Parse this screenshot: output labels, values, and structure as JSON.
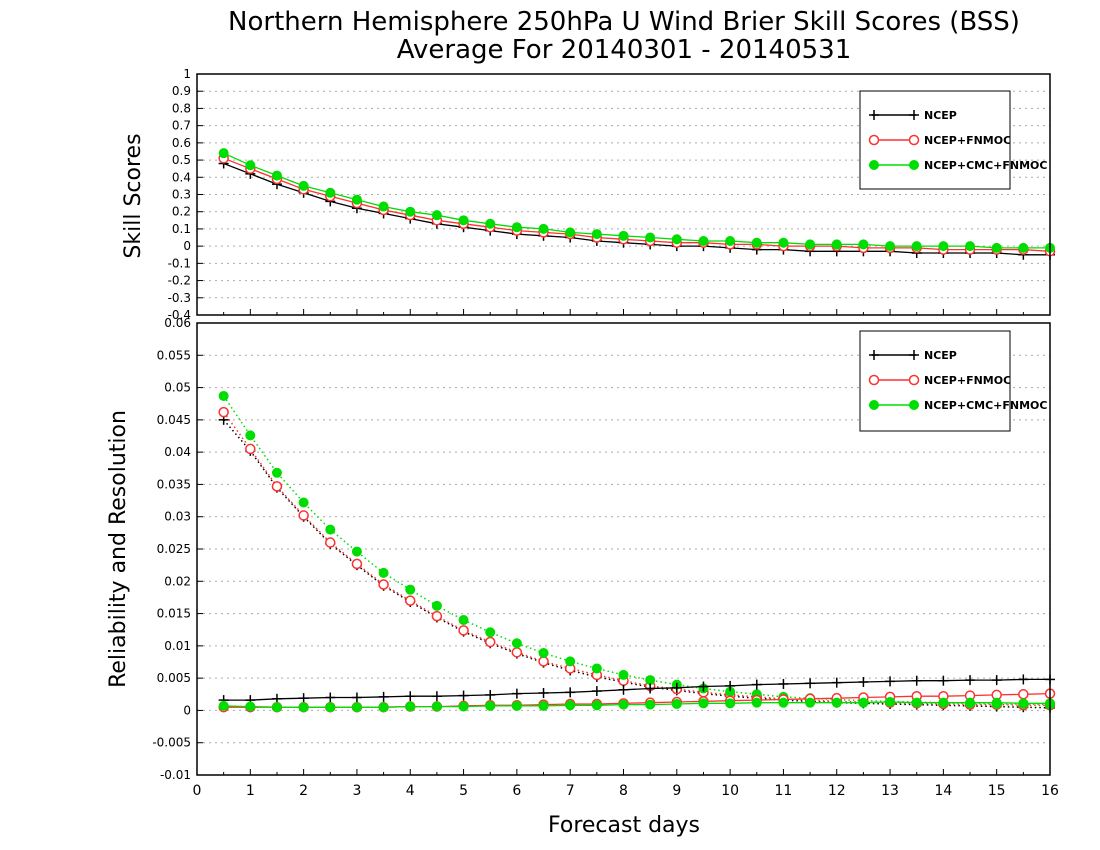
{
  "title_line1": "Northern Hemisphere 250hPa U Wind Brier Skill Scores (BSS)",
  "title_line2": "Average For 20140301 - 20140531",
  "xlabel": "Forecast days",
  "colors": {
    "ncep": "#000000",
    "fnmoc": "#ff3030",
    "cmc": "#00dd00"
  },
  "chart_data": [
    {
      "type": "line",
      "ylabel": "Skill Scores",
      "ylim": [
        -0.4,
        1
      ],
      "yticks": [
        "-0.4",
        "-0.3",
        "-0.2",
        "-0.1",
        "0",
        "0.1",
        "0.2",
        "0.3",
        "0.4",
        "0.5",
        "0.6",
        "0.7",
        "0.8",
        "0.9",
        "1"
      ],
      "xlim": [
        0,
        16
      ],
      "xticks": [
        "0",
        "1",
        "2",
        "3",
        "4",
        "5",
        "6",
        "7",
        "8",
        "9",
        "10",
        "11",
        "12",
        "13",
        "14",
        "15",
        "16"
      ],
      "legend_position": "top-right",
      "grid": true,
      "x": [
        0.5,
        1,
        1.5,
        2,
        2.5,
        3,
        3.5,
        4,
        4.5,
        5,
        5.5,
        6,
        6.5,
        7,
        7.5,
        8,
        8.5,
        9,
        9.5,
        10,
        10.5,
        11,
        11.5,
        12,
        12.5,
        13,
        13.5,
        14,
        14.5,
        15,
        15.5,
        16
      ],
      "series": [
        {
          "name": "NCEP",
          "color": "#000000",
          "marker": "plus",
          "dotted": false,
          "values": [
            0.48,
            0.42,
            0.36,
            0.31,
            0.26,
            0.22,
            0.19,
            0.16,
            0.13,
            0.11,
            0.09,
            0.07,
            0.06,
            0.05,
            0.03,
            0.02,
            0.01,
            0.0,
            0.0,
            -0.01,
            -0.02,
            -0.02,
            -0.03,
            -0.03,
            -0.03,
            -0.03,
            -0.04,
            -0.04,
            -0.04,
            -0.04,
            -0.05,
            -0.05
          ]
        },
        {
          "name": "NCEP+FNMOC",
          "color": "#ff3030",
          "marker": "circle-open",
          "dotted": false,
          "values": [
            0.51,
            0.45,
            0.39,
            0.33,
            0.29,
            0.25,
            0.21,
            0.18,
            0.15,
            0.13,
            0.11,
            0.09,
            0.08,
            0.07,
            0.05,
            0.04,
            0.03,
            0.02,
            0.02,
            0.01,
            0.01,
            0.0,
            0.0,
            0.0,
            -0.01,
            -0.01,
            -0.01,
            -0.02,
            -0.02,
            -0.02,
            -0.02,
            -0.03
          ]
        },
        {
          "name": "NCEP+CMC+FNMOC",
          "color": "#00dd00",
          "marker": "circle-filled",
          "dotted": false,
          "values": [
            0.54,
            0.47,
            0.41,
            0.35,
            0.31,
            0.27,
            0.23,
            0.2,
            0.18,
            0.15,
            0.13,
            0.11,
            0.1,
            0.08,
            0.07,
            0.06,
            0.05,
            0.04,
            0.03,
            0.03,
            0.02,
            0.02,
            0.01,
            0.01,
            0.01,
            0.0,
            0.0,
            0.0,
            0.0,
            -0.01,
            -0.01,
            -0.01
          ]
        }
      ]
    },
    {
      "type": "line",
      "ylabel": "Reliability and Resolution",
      "ylim": [
        -0.01,
        0.06
      ],
      "yticks": [
        "-0.01",
        "-0.005",
        "0",
        "0.005",
        "0.01",
        "0.015",
        "0.02",
        "0.025",
        "0.03",
        "0.035",
        "0.04",
        "0.045",
        "0.05",
        "0.055",
        "0.06"
      ],
      "xlim": [
        0,
        16
      ],
      "legend_position": "top-right",
      "grid": true,
      "x": [
        0.5,
        1,
        1.5,
        2,
        2.5,
        3,
        3.5,
        4,
        4.5,
        5,
        5.5,
        6,
        6.5,
        7,
        7.5,
        8,
        8.5,
        9,
        9.5,
        10,
        10.5,
        11,
        11.5,
        12,
        12.5,
        13,
        13.5,
        14,
        14.5,
        15,
        15.5,
        16
      ],
      "series": [
        {
          "name": "NCEP",
          "color": "#000000",
          "marker": "plus",
          "dotted": true,
          "values": [
            0.045,
            0.0402,
            0.0345,
            0.03,
            0.0258,
            0.0225,
            0.0193,
            0.0168,
            0.0144,
            0.0122,
            0.0104,
            0.0088,
            0.0074,
            0.0062,
            0.0052,
            0.0044,
            0.0036,
            0.0031,
            0.0026,
            0.0022,
            0.0019,
            0.0016,
            0.0014,
            0.0012,
            0.0011,
            0.001,
            0.0009,
            0.0008,
            0.0007,
            0.0006,
            0.0005,
            0.0004
          ]
        },
        {
          "name": "NCEP+FNMOC",
          "color": "#ff3030",
          "marker": "circle-open",
          "dotted": true,
          "values": [
            0.0462,
            0.0405,
            0.0347,
            0.0302,
            0.026,
            0.0227,
            0.0195,
            0.017,
            0.0146,
            0.0124,
            0.0106,
            0.009,
            0.0076,
            0.0065,
            0.0055,
            0.0046,
            0.0038,
            0.0033,
            0.0028,
            0.0024,
            0.0021,
            0.0018,
            0.0016,
            0.0014,
            0.0013,
            0.0012,
            0.0011,
            0.001,
            0.0009,
            0.0009,
            0.0008,
            0.0008
          ]
        },
        {
          "name": "NCEP+CMC+FNMOC",
          "color": "#00dd00",
          "marker": "circle-filled",
          "dotted": true,
          "values": [
            0.0487,
            0.0426,
            0.0368,
            0.0322,
            0.028,
            0.0246,
            0.0213,
            0.0187,
            0.0162,
            0.014,
            0.0121,
            0.0104,
            0.0089,
            0.0076,
            0.0065,
            0.0055,
            0.0047,
            0.004,
            0.0034,
            0.0029,
            0.0025,
            0.0021,
            0.0019,
            0.0017,
            0.0015,
            0.0014,
            0.0013,
            0.0012,
            0.0011,
            0.001,
            0.001,
            0.0009
          ]
        },
        {
          "name": "NCEP",
          "color": "#000000",
          "marker": "plus",
          "dotted": false,
          "values": [
            0.0016,
            0.0016,
            0.0018,
            0.0019,
            0.002,
            0.002,
            0.0021,
            0.0022,
            0.0022,
            0.0023,
            0.0024,
            0.0026,
            0.0027,
            0.0028,
            0.003,
            0.0032,
            0.0034,
            0.0035,
            0.0037,
            0.0038,
            0.004,
            0.0041,
            0.0042,
            0.0043,
            0.0044,
            0.0045,
            0.0046,
            0.0046,
            0.0047,
            0.0047,
            0.0048,
            0.0048
          ]
        },
        {
          "name": "NCEP+FNMOC",
          "color": "#ff3030",
          "marker": "circle-open",
          "dotted": false,
          "values": [
            0.0005,
            0.0005,
            0.0005,
            0.0005,
            0.0005,
            0.0005,
            0.0005,
            0.0006,
            0.0006,
            0.0007,
            0.0008,
            0.0008,
            0.0009,
            0.001,
            0.001,
            0.0011,
            0.0012,
            0.0013,
            0.0014,
            0.0015,
            0.0016,
            0.0017,
            0.0018,
            0.0019,
            0.002,
            0.0021,
            0.0022,
            0.0022,
            0.0023,
            0.0024,
            0.0025,
            0.0026
          ]
        },
        {
          "name": "NCEP+CMC+FNMOC",
          "color": "#00dd00",
          "marker": "circle-filled",
          "dotted": false,
          "values": [
            0.0007,
            0.0006,
            0.0005,
            0.0005,
            0.0005,
            0.0005,
            0.0005,
            0.0006,
            0.0006,
            0.0006,
            0.0007,
            0.0007,
            0.0007,
            0.0008,
            0.0008,
            0.0009,
            0.0009,
            0.001,
            0.0011,
            0.0011,
            0.0012,
            0.0012,
            0.0012,
            0.0012,
            0.0012,
            0.0013,
            0.0012,
            0.0012,
            0.0012,
            0.0012,
            0.0011,
            0.0011
          ]
        }
      ],
      "legend": [
        {
          "name": "NCEP",
          "color": "#000000",
          "marker": "plus"
        },
        {
          "name": "NCEP+FNMOC",
          "color": "#ff3030",
          "marker": "circle-open"
        },
        {
          "name": "NCEP+CMC+FNMOC",
          "color": "#00dd00",
          "marker": "circle-filled"
        }
      ]
    }
  ]
}
